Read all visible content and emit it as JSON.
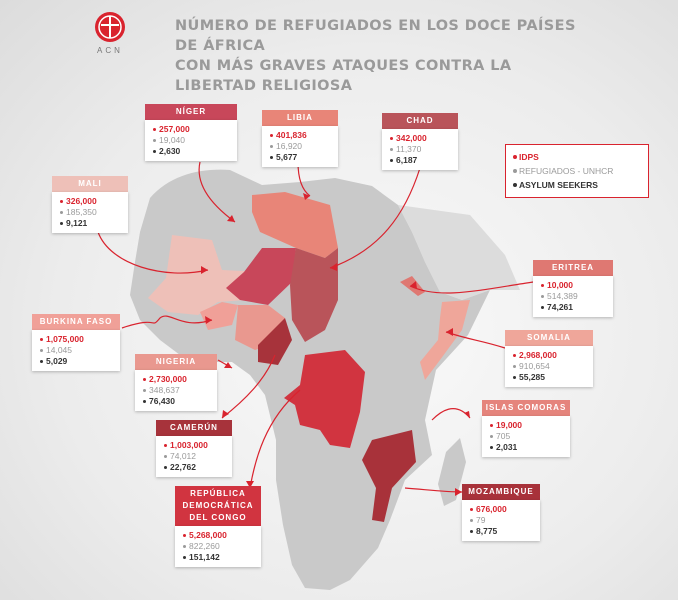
{
  "header": {
    "logo_text": "ACN",
    "title_line1": "NÚMERO DE REFUGIADOS EN LOS DOCE PAÍSES DE ÁFRICA",
    "title_line2": "CON MÁS GRAVES ATAQUES CONTRA LA LIBERTAD RELIGIOSA"
  },
  "legend": {
    "idps": "IDPS",
    "refugiados": "REFUGIADOS - UNHCR",
    "asylum": "ASYLUM SEEKERS"
  },
  "colors": {
    "accent": "#d9232e",
    "land": "#c9c9c9",
    "idps": "#d9232e",
    "refugiados": "#9a9a9a",
    "asylum": "#333333"
  },
  "countries": [
    {
      "id": "niger",
      "name": "NÍGER",
      "idps": "257,000",
      "refugiados": "19,040",
      "asylum": "2,630",
      "header_color": "#c8475a"
    },
    {
      "id": "libia",
      "name": "LIBIA",
      "idps": "401,836",
      "refugiados": "16,920",
      "asylum": "5,677",
      "header_color": "#e88578"
    },
    {
      "id": "chad",
      "name": "CHAD",
      "idps": "342,000",
      "refugiados": "11,370",
      "asylum": "6,187",
      "header_color": "#b9545a"
    },
    {
      "id": "mali",
      "name": "MALI",
      "idps": "326,000",
      "refugiados": "185,350",
      "asylum": "9,121",
      "header_color": "#eec0b8"
    },
    {
      "id": "eritrea",
      "name": "ERITREA",
      "idps": "10,000",
      "refugiados": "514,389",
      "asylum": "74,261",
      "header_color": "#df7872"
    },
    {
      "id": "burkina",
      "name": "BURKINA FASO",
      "idps": "1,075,000",
      "refugiados": "14,045",
      "asylum": "5,029",
      "header_color": "#f0a098"
    },
    {
      "id": "somalia",
      "name": "SOMALIA",
      "idps": "2,968,000",
      "refugiados": "910,654",
      "asylum": "55,285",
      "header_color": "#efa69a"
    },
    {
      "id": "nigeria",
      "name": "NIGERIA",
      "idps": "2,730,000",
      "refugiados": "348,637",
      "asylum": "76,430",
      "header_color": "#e9988f"
    },
    {
      "id": "comoras",
      "name": "ISLAS COMORAS",
      "idps": "19,000",
      "refugiados": "705",
      "asylum": "2,031",
      "header_color": "#e5847c"
    },
    {
      "id": "camerun",
      "name": "CAMERÚN",
      "idps": "1,003,000",
      "refugiados": "74,012",
      "asylum": "22,762",
      "header_color": "#a7333b"
    },
    {
      "id": "congo",
      "name": "REPÚBLICA DEMOCRÁTICA DEL CONGO",
      "idps": "5,268,000",
      "refugiados": "822,260",
      "asylum": "151,142",
      "header_color": "#d13440"
    },
    {
      "id": "mozambique",
      "name": "MOZAMBIQUE",
      "idps": "676,000",
      "refugiados": "79",
      "asylum": "8,775",
      "header_color": "#a8323a"
    }
  ]
}
